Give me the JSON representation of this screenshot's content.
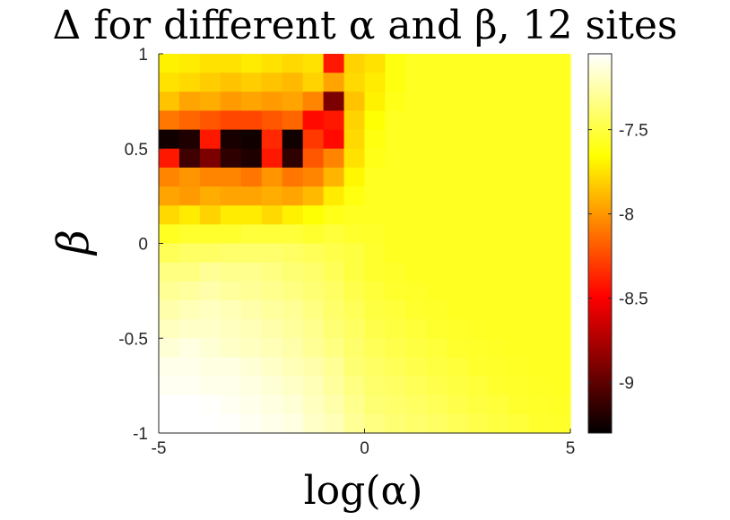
{
  "chart_data": {
    "type": "heatmap",
    "title": "Δ for different α and β, 12 sites",
    "xlabel": "log(α)",
    "ylabel": "β",
    "xlim": [
      -5,
      5
    ],
    "ylim": [
      -1,
      1
    ],
    "x_ticks": [
      "-5",
      "0",
      "5"
    ],
    "y_ticks": [
      "1",
      "0.5",
      "0",
      "-0.5",
      "-1"
    ],
    "colorbar": {
      "colormap": "hot",
      "range": [
        -9.3,
        -7.05
      ],
      "ticks": [
        "-7.5",
        "-8",
        "-8.5",
        "-9"
      ]
    },
    "grid": false,
    "legend": "none",
    "x": [
      -4.75,
      -4.25,
      -3.75,
      -3.25,
      -2.75,
      -2.25,
      -1.75,
      -1.25,
      -0.75,
      -0.25,
      0.25,
      0.75,
      1.25,
      1.75,
      2.25,
      2.75,
      3.25,
      3.75,
      4.25,
      4.75
    ],
    "y": [
      0.95,
      0.85,
      0.75,
      0.65,
      0.55,
      0.45,
      0.35,
      0.25,
      0.15,
      0.05,
      -0.05,
      -0.15,
      -0.25,
      -0.35,
      -0.45,
      -0.55,
      -0.65,
      -0.75,
      -0.85,
      -0.95
    ],
    "z": [
      [
        -7.7,
        -7.72,
        -7.75,
        -7.75,
        -7.72,
        -7.75,
        -7.78,
        -7.75,
        -8.4,
        -7.8,
        -7.75,
        -7.62,
        -7.58,
        -7.58,
        -7.58,
        -7.58,
        -7.58,
        -7.58,
        -7.58,
        -7.58
      ],
      [
        -7.75,
        -7.78,
        -7.82,
        -7.85,
        -7.82,
        -7.85,
        -7.88,
        -7.8,
        -7.95,
        -7.78,
        -7.72,
        -7.62,
        -7.58,
        -7.58,
        -7.58,
        -7.58,
        -7.58,
        -7.58,
        -7.58,
        -7.58
      ],
      [
        -7.85,
        -7.95,
        -7.92,
        -7.98,
        -7.95,
        -7.98,
        -7.95,
        -8.05,
        -8.9,
        -7.85,
        -7.7,
        -7.6,
        -7.58,
        -7.58,
        -7.58,
        -7.58,
        -7.58,
        -7.58,
        -7.58,
        -7.58
      ],
      [
        -8.1,
        -8.15,
        -8.2,
        -8.25,
        -8.25,
        -8.2,
        -8.15,
        -8.45,
        -8.4,
        -7.8,
        -7.65,
        -7.58,
        -7.58,
        -7.58,
        -7.58,
        -7.58,
        -7.58,
        -7.58,
        -7.58,
        -7.58
      ],
      [
        -9.25,
        -9.2,
        -8.4,
        -9.22,
        -9.25,
        -8.35,
        -9.25,
        -8.3,
        -8.45,
        -7.78,
        -7.62,
        -7.58,
        -7.58,
        -7.58,
        -7.58,
        -7.58,
        -7.58,
        -7.58,
        -7.58,
        -7.58
      ],
      [
        -8.4,
        -9.1,
        -8.9,
        -9.15,
        -9.2,
        -8.4,
        -9.15,
        -8.2,
        -8.05,
        -7.75,
        -7.6,
        -7.58,
        -7.58,
        -7.58,
        -7.58,
        -7.58,
        -7.58,
        -7.58,
        -7.58,
        -7.58
      ],
      [
        -8.05,
        -8.0,
        -8.05,
        -8.05,
        -8.1,
        -8.0,
        -8.1,
        -8.05,
        -7.9,
        -7.68,
        -7.58,
        -7.58,
        -7.58,
        -7.58,
        -7.58,
        -7.58,
        -7.58,
        -7.58,
        -7.58,
        -7.58
      ],
      [
        -7.95,
        -7.98,
        -7.92,
        -7.95,
        -7.95,
        -7.92,
        -7.95,
        -7.88,
        -7.72,
        -7.62,
        -7.58,
        -7.58,
        -7.58,
        -7.58,
        -7.58,
        -7.58,
        -7.58,
        -7.58,
        -7.58,
        -7.58
      ],
      [
        -7.78,
        -7.72,
        -7.8,
        -7.72,
        -7.72,
        -7.78,
        -7.7,
        -7.65,
        -7.6,
        -7.58,
        -7.58,
        -7.58,
        -7.58,
        -7.58,
        -7.58,
        -7.58,
        -7.58,
        -7.58,
        -7.58,
        -7.58
      ],
      [
        -7.58,
        -7.55,
        -7.55,
        -7.55,
        -7.52,
        -7.52,
        -7.52,
        -7.55,
        -7.52,
        -7.55,
        -7.56,
        -7.58,
        -7.58,
        -7.58,
        -7.58,
        -7.58,
        -7.58,
        -7.58,
        -7.58,
        -7.58
      ],
      [
        -7.45,
        -7.42,
        -7.42,
        -7.4,
        -7.4,
        -7.4,
        -7.42,
        -7.45,
        -7.48,
        -7.5,
        -7.55,
        -7.58,
        -7.58,
        -7.58,
        -7.58,
        -7.58,
        -7.58,
        -7.58,
        -7.58,
        -7.58
      ],
      [
        -7.35,
        -7.35,
        -7.3,
        -7.32,
        -7.32,
        -7.35,
        -7.38,
        -7.4,
        -7.45,
        -7.5,
        -7.55,
        -7.56,
        -7.58,
        -7.58,
        -7.58,
        -7.58,
        -7.58,
        -7.58,
        -7.58,
        -7.58
      ],
      [
        -7.3,
        -7.28,
        -7.25,
        -7.28,
        -7.3,
        -7.32,
        -7.35,
        -7.38,
        -7.42,
        -7.48,
        -7.52,
        -7.55,
        -7.56,
        -7.58,
        -7.58,
        -7.58,
        -7.58,
        -7.58,
        -7.58,
        -7.58
      ],
      [
        -7.25,
        -7.22,
        -7.2,
        -7.22,
        -7.25,
        -7.28,
        -7.3,
        -7.35,
        -7.4,
        -7.45,
        -7.5,
        -7.52,
        -7.55,
        -7.56,
        -7.58,
        -7.58,
        -7.58,
        -7.58,
        -7.58,
        -7.58
      ],
      [
        -7.2,
        -7.18,
        -7.18,
        -7.2,
        -7.22,
        -7.25,
        -7.28,
        -7.32,
        -7.38,
        -7.42,
        -7.48,
        -7.5,
        -7.52,
        -7.55,
        -7.56,
        -7.57,
        -7.58,
        -7.58,
        -7.58,
        -7.58
      ],
      [
        -7.15,
        -7.12,
        -7.15,
        -7.18,
        -7.2,
        -7.22,
        -7.25,
        -7.3,
        -7.35,
        -7.4,
        -7.45,
        -7.48,
        -7.5,
        -7.52,
        -7.55,
        -7.56,
        -7.57,
        -7.58,
        -7.58,
        -7.58
      ],
      [
        -7.1,
        -7.1,
        -7.12,
        -7.12,
        -7.15,
        -7.18,
        -7.22,
        -7.25,
        -7.3,
        -7.38,
        -7.42,
        -7.45,
        -7.48,
        -7.5,
        -7.52,
        -7.55,
        -7.56,
        -7.57,
        -7.58,
        -7.58
      ],
      [
        -7.08,
        -7.08,
        -7.1,
        -7.1,
        -7.12,
        -7.15,
        -7.18,
        -7.22,
        -7.28,
        -7.35,
        -7.4,
        -7.42,
        -7.45,
        -7.48,
        -7.5,
        -7.52,
        -7.55,
        -7.56,
        -7.57,
        -7.58
      ],
      [
        -7.05,
        -7.05,
        -7.06,
        -7.08,
        -7.1,
        -7.12,
        -7.15,
        -7.2,
        -7.25,
        -7.32,
        -7.38,
        -7.4,
        -7.42,
        -7.45,
        -7.48,
        -7.5,
        -7.52,
        -7.55,
        -7.56,
        -7.57
      ],
      [
        -7.05,
        -7.05,
        -7.05,
        -7.06,
        -7.08,
        -7.1,
        -7.12,
        -7.18,
        -7.22,
        -7.3,
        -7.35,
        -7.38,
        -7.4,
        -7.42,
        -7.45,
        -7.48,
        -7.5,
        -7.52,
        -7.55,
        -7.56
      ]
    ]
  }
}
